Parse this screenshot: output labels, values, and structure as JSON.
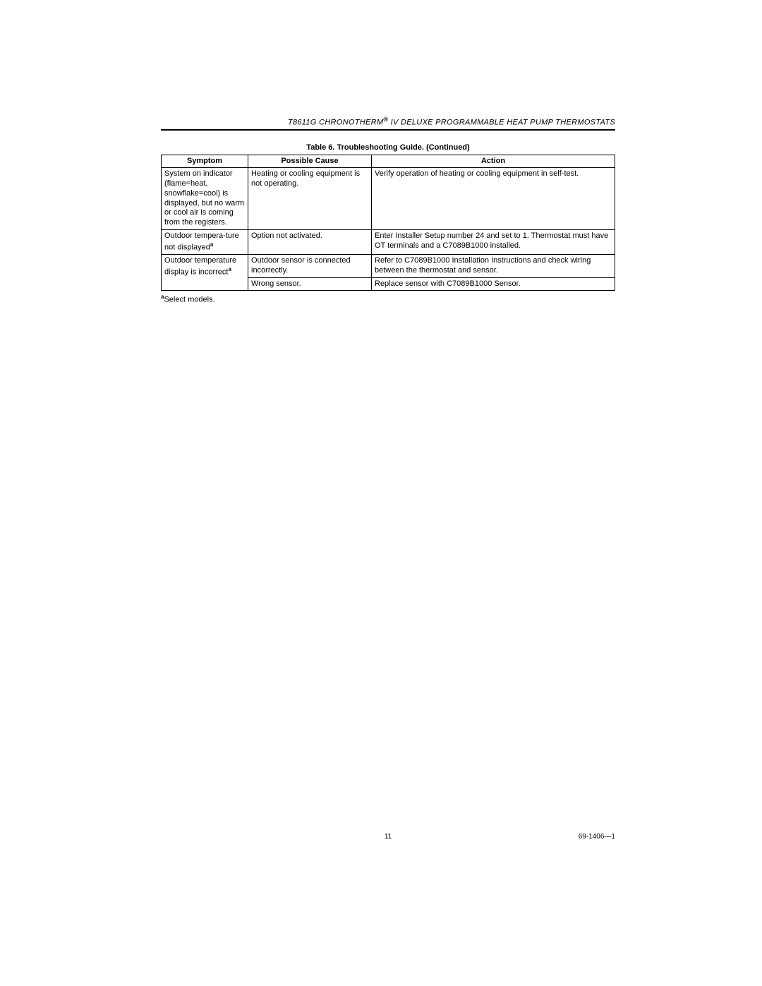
{
  "header": {
    "title_left": "T8611G CHRONOTHERM",
    "title_right": " IV DELUXE PROGRAMMABLE HEAT PUMP THERMOSTATS",
    "reg_mark": "®"
  },
  "table": {
    "caption": "Table 6. Troubleshooting Guide. (Continued)",
    "columns": [
      "Symptom",
      "Possible Cause",
      "Action"
    ],
    "rows": [
      {
        "symptom": "System on indicator (flame=heat, snowflake=cool) is displayed, but no warm or cool air is coming from the registers.",
        "symptom_sup": "",
        "rowspan": 1,
        "cells": [
          {
            "cause": "Heating or cooling equipment is not operating.",
            "action": "Verify operation of heating or cooling equipment in self-test."
          }
        ]
      },
      {
        "symptom": "Outdoor tempera-ture not displayed",
        "symptom_sup": "a",
        "rowspan": 1,
        "cells": [
          {
            "cause": "Option not activated.",
            "action": "Enter Installer Setup number 24 and set to 1. Thermostat must have OT terminals and a C7089B1000 installed."
          }
        ]
      },
      {
        "symptom": "Outdoor temperature display is incorrect",
        "symptom_sup": "a",
        "rowspan": 2,
        "cells": [
          {
            "cause": "Outdoor sensor is connected incorrectly.",
            "action": "Refer to C7089B1000 Installation Instructions and check wiring between the thermostat and sensor."
          },
          {
            "cause": "Wrong sensor.",
            "action": "Replace sensor with C7089B1000 Sensor."
          }
        ]
      }
    ]
  },
  "footnote": {
    "marker": "a",
    "text": "Select models."
  },
  "footer": {
    "page_number": "11",
    "doc_number": "69-1406—1"
  }
}
